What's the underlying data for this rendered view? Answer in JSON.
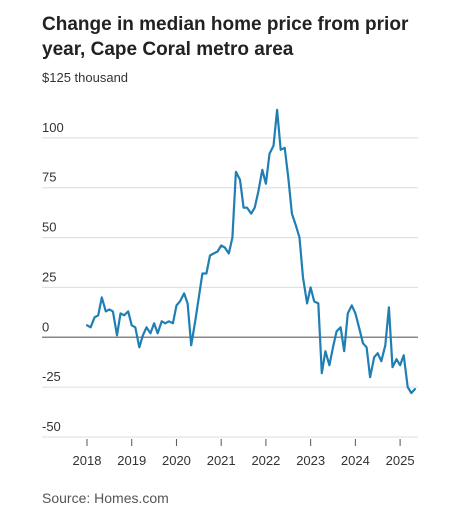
{
  "title": "Change in median home price from prior year, Cape Coral metro area",
  "source": "Source: Homes.com",
  "colors": {
    "line": "#1f7fb4",
    "grid": "#dcdcdc",
    "zero": "#888888",
    "text": "#333333"
  },
  "chart_data": {
    "type": "line",
    "title": "Change in median home price from prior year, Cape Coral metro area",
    "y_unit_label": "$125 thousand",
    "y_ticks": [
      {
        "value": 125,
        "label": "$125 thousand"
      },
      {
        "value": 100,
        "label": "100"
      },
      {
        "value": 75,
        "label": "75"
      },
      {
        "value": 50,
        "label": "50"
      },
      {
        "value": 25,
        "label": "25"
      },
      {
        "value": 0,
        "label": "0"
      },
      {
        "value": -25,
        "label": "-25"
      },
      {
        "value": -50,
        "label": "-50"
      }
    ],
    "x_ticks": [
      "2018",
      "2019",
      "2020",
      "2021",
      "2022",
      "2023",
      "2024",
      "2025"
    ],
    "ylim": [
      -50,
      125
    ],
    "xlim": [
      2017.97,
      2025.4
    ],
    "grid": true,
    "series": [
      {
        "values": [
          [
            2018.0,
            6
          ],
          [
            2018.08,
            5
          ],
          [
            2018.17,
            10
          ],
          [
            2018.25,
            11
          ],
          [
            2018.33,
            20
          ],
          [
            2018.42,
            13
          ],
          [
            2018.5,
            14
          ],
          [
            2018.58,
            13
          ],
          [
            2018.67,
            1
          ],
          [
            2018.75,
            12
          ],
          [
            2018.83,
            11
          ],
          [
            2018.92,
            13
          ],
          [
            2019.0,
            6
          ],
          [
            2019.08,
            5
          ],
          [
            2019.17,
            -5
          ],
          [
            2019.25,
            1
          ],
          [
            2019.33,
            5
          ],
          [
            2019.42,
            2
          ],
          [
            2019.5,
            7
          ],
          [
            2019.58,
            2
          ],
          [
            2019.67,
            8
          ],
          [
            2019.75,
            7
          ],
          [
            2019.83,
            8
          ],
          [
            2019.92,
            7
          ],
          [
            2020.0,
            16
          ],
          [
            2020.08,
            18
          ],
          [
            2020.17,
            22
          ],
          [
            2020.25,
            17
          ],
          [
            2020.33,
            -4
          ],
          [
            2020.42,
            8
          ],
          [
            2020.5,
            20
          ],
          [
            2020.58,
            32
          ],
          [
            2020.67,
            32
          ],
          [
            2020.75,
            41
          ],
          [
            2020.83,
            42
          ],
          [
            2020.92,
            43
          ],
          [
            2021.0,
            46
          ],
          [
            2021.08,
            45
          ],
          [
            2021.17,
            42
          ],
          [
            2021.25,
            50
          ],
          [
            2021.33,
            83
          ],
          [
            2021.42,
            79
          ],
          [
            2021.5,
            65
          ],
          [
            2021.58,
            65
          ],
          [
            2021.67,
            62
          ],
          [
            2021.75,
            65
          ],
          [
            2021.83,
            73
          ],
          [
            2021.92,
            84
          ],
          [
            2022.0,
            77
          ],
          [
            2022.08,
            92
          ],
          [
            2022.17,
            96
          ],
          [
            2022.25,
            114
          ],
          [
            2022.33,
            94
          ],
          [
            2022.42,
            95
          ],
          [
            2022.5,
            80
          ],
          [
            2022.58,
            62
          ],
          [
            2022.67,
            56
          ],
          [
            2022.75,
            50
          ],
          [
            2022.83,
            30
          ],
          [
            2022.92,
            17
          ],
          [
            2023.0,
            25
          ],
          [
            2023.08,
            18
          ],
          [
            2023.17,
            17
          ],
          [
            2023.25,
            -18
          ],
          [
            2023.33,
            -7
          ],
          [
            2023.42,
            -14
          ],
          [
            2023.5,
            -5
          ],
          [
            2023.58,
            3
          ],
          [
            2023.67,
            5
          ],
          [
            2023.75,
            -7
          ],
          [
            2023.83,
            12
          ],
          [
            2023.92,
            16
          ],
          [
            2024.0,
            12
          ],
          [
            2024.08,
            5
          ],
          [
            2024.17,
            -3
          ],
          [
            2024.25,
            -5
          ],
          [
            2024.33,
            -20
          ],
          [
            2024.42,
            -10
          ],
          [
            2024.5,
            -8
          ],
          [
            2024.58,
            -12
          ],
          [
            2024.67,
            -4
          ],
          [
            2024.75,
            15
          ],
          [
            2024.83,
            -15
          ],
          [
            2024.92,
            -11
          ],
          [
            2025.0,
            -14
          ],
          [
            2025.08,
            -9
          ],
          [
            2025.17,
            -25
          ],
          [
            2025.25,
            -28
          ],
          [
            2025.33,
            -26
          ]
        ]
      }
    ]
  }
}
